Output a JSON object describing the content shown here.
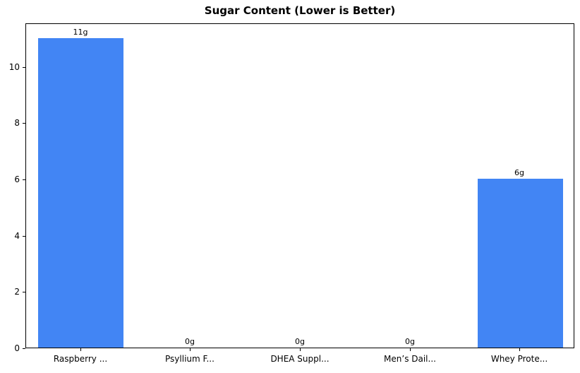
{
  "colors": {
    "bar": "#4285f4",
    "axis": "#000000",
    "background": "#ffffff"
  },
  "chart_data": {
    "type": "bar",
    "title": "Sugar Content (Lower is Better)",
    "categories": [
      "Raspberry ...",
      "Psyllium F...",
      "DHEA Suppl...",
      "Men’s Dail...",
      "Whey Prote..."
    ],
    "values": [
      11,
      0,
      0,
      0,
      6
    ],
    "bar_labels": [
      "11g",
      "0g",
      "0g",
      "0g",
      "6g"
    ],
    "xlabel": "",
    "ylabel": "",
    "ylim": [
      0,
      11.55
    ],
    "yticks": [
      0,
      2,
      4,
      6,
      8,
      10
    ],
    "grid": false,
    "legend": false,
    "bar_color": "#4285f4",
    "bar_width_fraction": 0.78
  }
}
